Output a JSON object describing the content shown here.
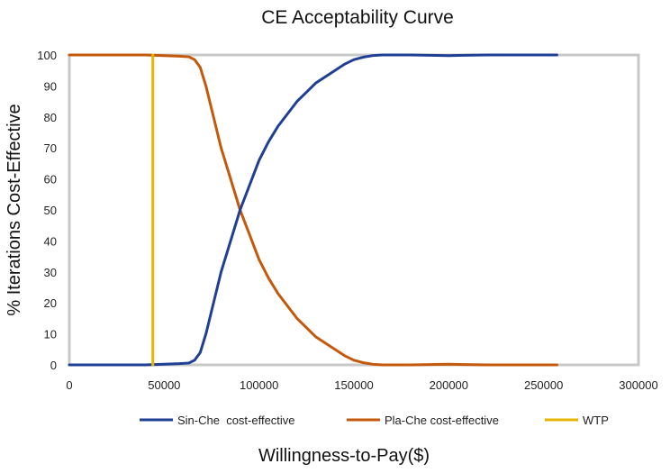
{
  "chart_data": {
    "type": "line",
    "title": "CE Acceptability Curve",
    "xlabel": "Willingness-to-Pay($)",
    "ylabel": "% Iterations Cost-Effective",
    "xlim": [
      0,
      300000
    ],
    "ylim": [
      0,
      100
    ],
    "x_ticks": [
      0,
      50000,
      100000,
      150000,
      200000,
      250000,
      300000
    ],
    "y_ticks": [
      0,
      10,
      20,
      30,
      40,
      50,
      60,
      70,
      80,
      90,
      100
    ],
    "grid": false,
    "legend_position": "bottom",
    "series": [
      {
        "name": "Sin-Che  cost-effective",
        "color": "#1f3f94",
        "points": [
          [
            0,
            0
          ],
          [
            20000,
            0
          ],
          [
            40000,
            0
          ],
          [
            50000,
            0.2
          ],
          [
            58000,
            0.4
          ],
          [
            63000,
            0.6
          ],
          [
            66000,
            1.5
          ],
          [
            69000,
            4
          ],
          [
            72000,
            10
          ],
          [
            76000,
            20
          ],
          [
            80000,
            30
          ],
          [
            85000,
            40
          ],
          [
            90000,
            50
          ],
          [
            95000,
            58
          ],
          [
            100000,
            66
          ],
          [
            105000,
            72
          ],
          [
            110000,
            77
          ],
          [
            115000,
            81
          ],
          [
            120000,
            85
          ],
          [
            125000,
            88
          ],
          [
            130000,
            91
          ],
          [
            135000,
            93
          ],
          [
            140000,
            95
          ],
          [
            145000,
            97
          ],
          [
            150000,
            98.5
          ],
          [
            155000,
            99.3
          ],
          [
            160000,
            99.8
          ],
          [
            165000,
            100
          ],
          [
            180000,
            100
          ],
          [
            200000,
            99.8
          ],
          [
            220000,
            100
          ],
          [
            240000,
            100
          ],
          [
            257000,
            100
          ]
        ]
      },
      {
        "name": "Pla-Che cost-effective",
        "color": "#c4580b",
        "points": [
          [
            0,
            100
          ],
          [
            20000,
            100
          ],
          [
            40000,
            100
          ],
          [
            50000,
            99.8
          ],
          [
            58000,
            99.6
          ],
          [
            63000,
            99.4
          ],
          [
            66000,
            98.5
          ],
          [
            69000,
            96
          ],
          [
            72000,
            90
          ],
          [
            76000,
            80
          ],
          [
            80000,
            70
          ],
          [
            85000,
            60
          ],
          [
            90000,
            50
          ],
          [
            95000,
            42
          ],
          [
            100000,
            34
          ],
          [
            105000,
            28
          ],
          [
            110000,
            23
          ],
          [
            115000,
            19
          ],
          [
            120000,
            15
          ],
          [
            125000,
            12
          ],
          [
            130000,
            9
          ],
          [
            135000,
            7
          ],
          [
            140000,
            5
          ],
          [
            145000,
            3
          ],
          [
            150000,
            1.5
          ],
          [
            155000,
            0.7
          ],
          [
            160000,
            0.2
          ],
          [
            165000,
            0
          ],
          [
            180000,
            0
          ],
          [
            200000,
            0.2
          ],
          [
            220000,
            0
          ],
          [
            240000,
            0
          ],
          [
            257000,
            0
          ]
        ]
      },
      {
        "name": "WTP",
        "color": "#e8b400",
        "points": [
          [
            44000,
            0
          ],
          [
            44000,
            100
          ]
        ]
      }
    ]
  }
}
